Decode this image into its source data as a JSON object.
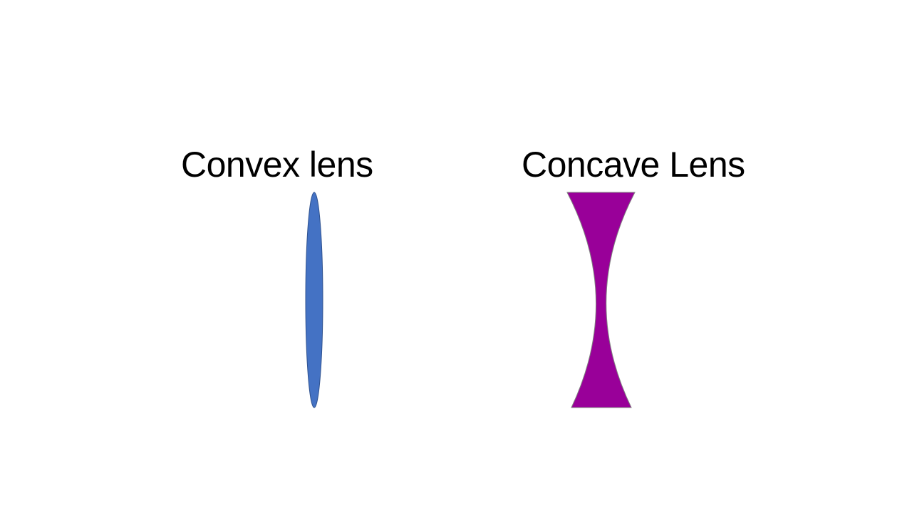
{
  "diagram": {
    "convex": {
      "label": "Convex lens",
      "fill_color": "#4472C4",
      "stroke_color": "#2F528F"
    },
    "concave": {
      "label": "Concave Lens",
      "fill_color": "#990099",
      "stroke_color": "#7F7F7F"
    }
  }
}
